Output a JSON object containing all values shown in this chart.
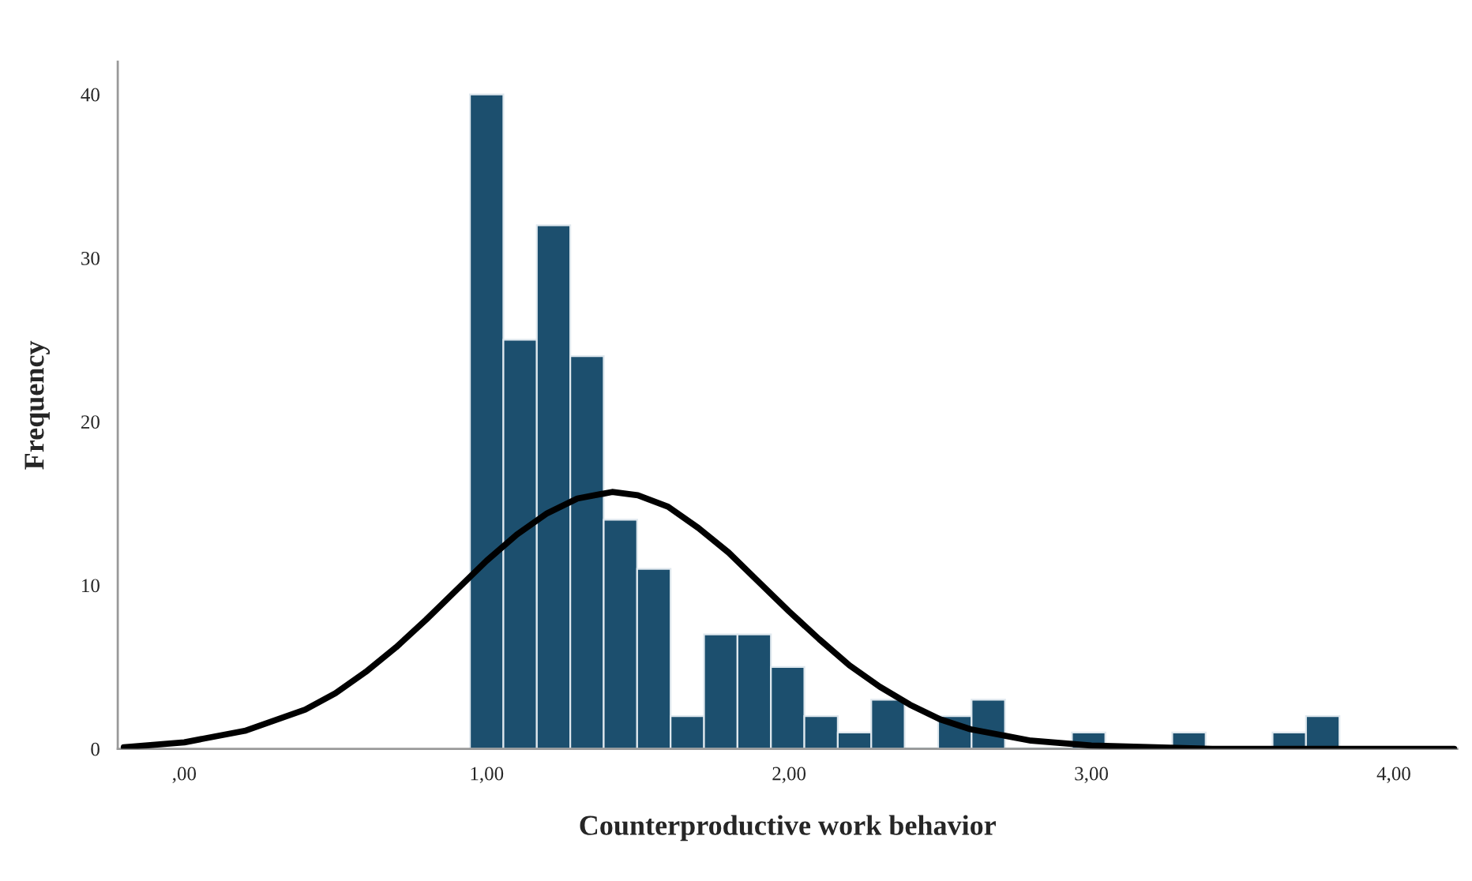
{
  "chart_data": {
    "type": "histogram",
    "xlabel": "Counterproductive work behavior",
    "ylabel": "Frequency",
    "color": "#1c4f6e",
    "bins": [
      0.9447,
      1.0553,
      1.1659,
      1.2765,
      1.3871,
      1.4977,
      1.6083,
      1.7189,
      1.8295,
      1.9401,
      2.0507,
      2.1613,
      2.2719,
      2.3825,
      2.4931,
      2.6037,
      2.7143,
      2.8249,
      2.9355,
      3.0461,
      3.1567,
      3.2673,
      3.3779,
      3.4885,
      3.5991,
      3.7097,
      3.8203
    ],
    "values": [
      40,
      25,
      32,
      24,
      14,
      11,
      2,
      7,
      7,
      5,
      2,
      1,
      3,
      0,
      2,
      3,
      0,
      0,
      1,
      0,
      0,
      1,
      0,
      0,
      1,
      2
    ],
    "series": [
      {
        "type": "line",
        "color": "#000000",
        "x": [
          -0.2,
          0.0,
          0.2,
          0.4,
          0.5,
          0.6,
          0.7,
          0.8,
          0.9,
          1.0,
          1.1,
          1.2,
          1.3,
          1.415,
          1.5,
          1.6,
          1.7,
          1.8,
          1.9,
          2.0,
          2.1,
          2.2,
          2.3,
          2.4,
          2.5,
          2.6,
          2.8,
          3.0,
          3.4,
          3.8,
          4.2
        ],
        "values": [
          0.1,
          0.4,
          1.1,
          2.4,
          3.4,
          4.7,
          6.2,
          7.9,
          9.7,
          11.5,
          13.1,
          14.4,
          15.3,
          15.7,
          15.5,
          14.8,
          13.5,
          12.0,
          10.2,
          8.4,
          6.7,
          5.1,
          3.8,
          2.7,
          1.8,
          1.2,
          0.5,
          0.2,
          0.0,
          0.0,
          0.0
        ]
      }
    ],
    "xlim": [
      -0.22,
      4.21
    ],
    "ylim": [
      0,
      42
    ],
    "xticks": [
      {
        "value": 0,
        "label": ",00"
      },
      {
        "value": 1,
        "label": "1,00"
      },
      {
        "value": 2,
        "label": "2,00"
      },
      {
        "value": 3,
        "label": "3,00"
      },
      {
        "value": 4,
        "label": "4,00"
      }
    ],
    "yticks": [
      0,
      10,
      20,
      30,
      40
    ],
    "grid": false
  }
}
